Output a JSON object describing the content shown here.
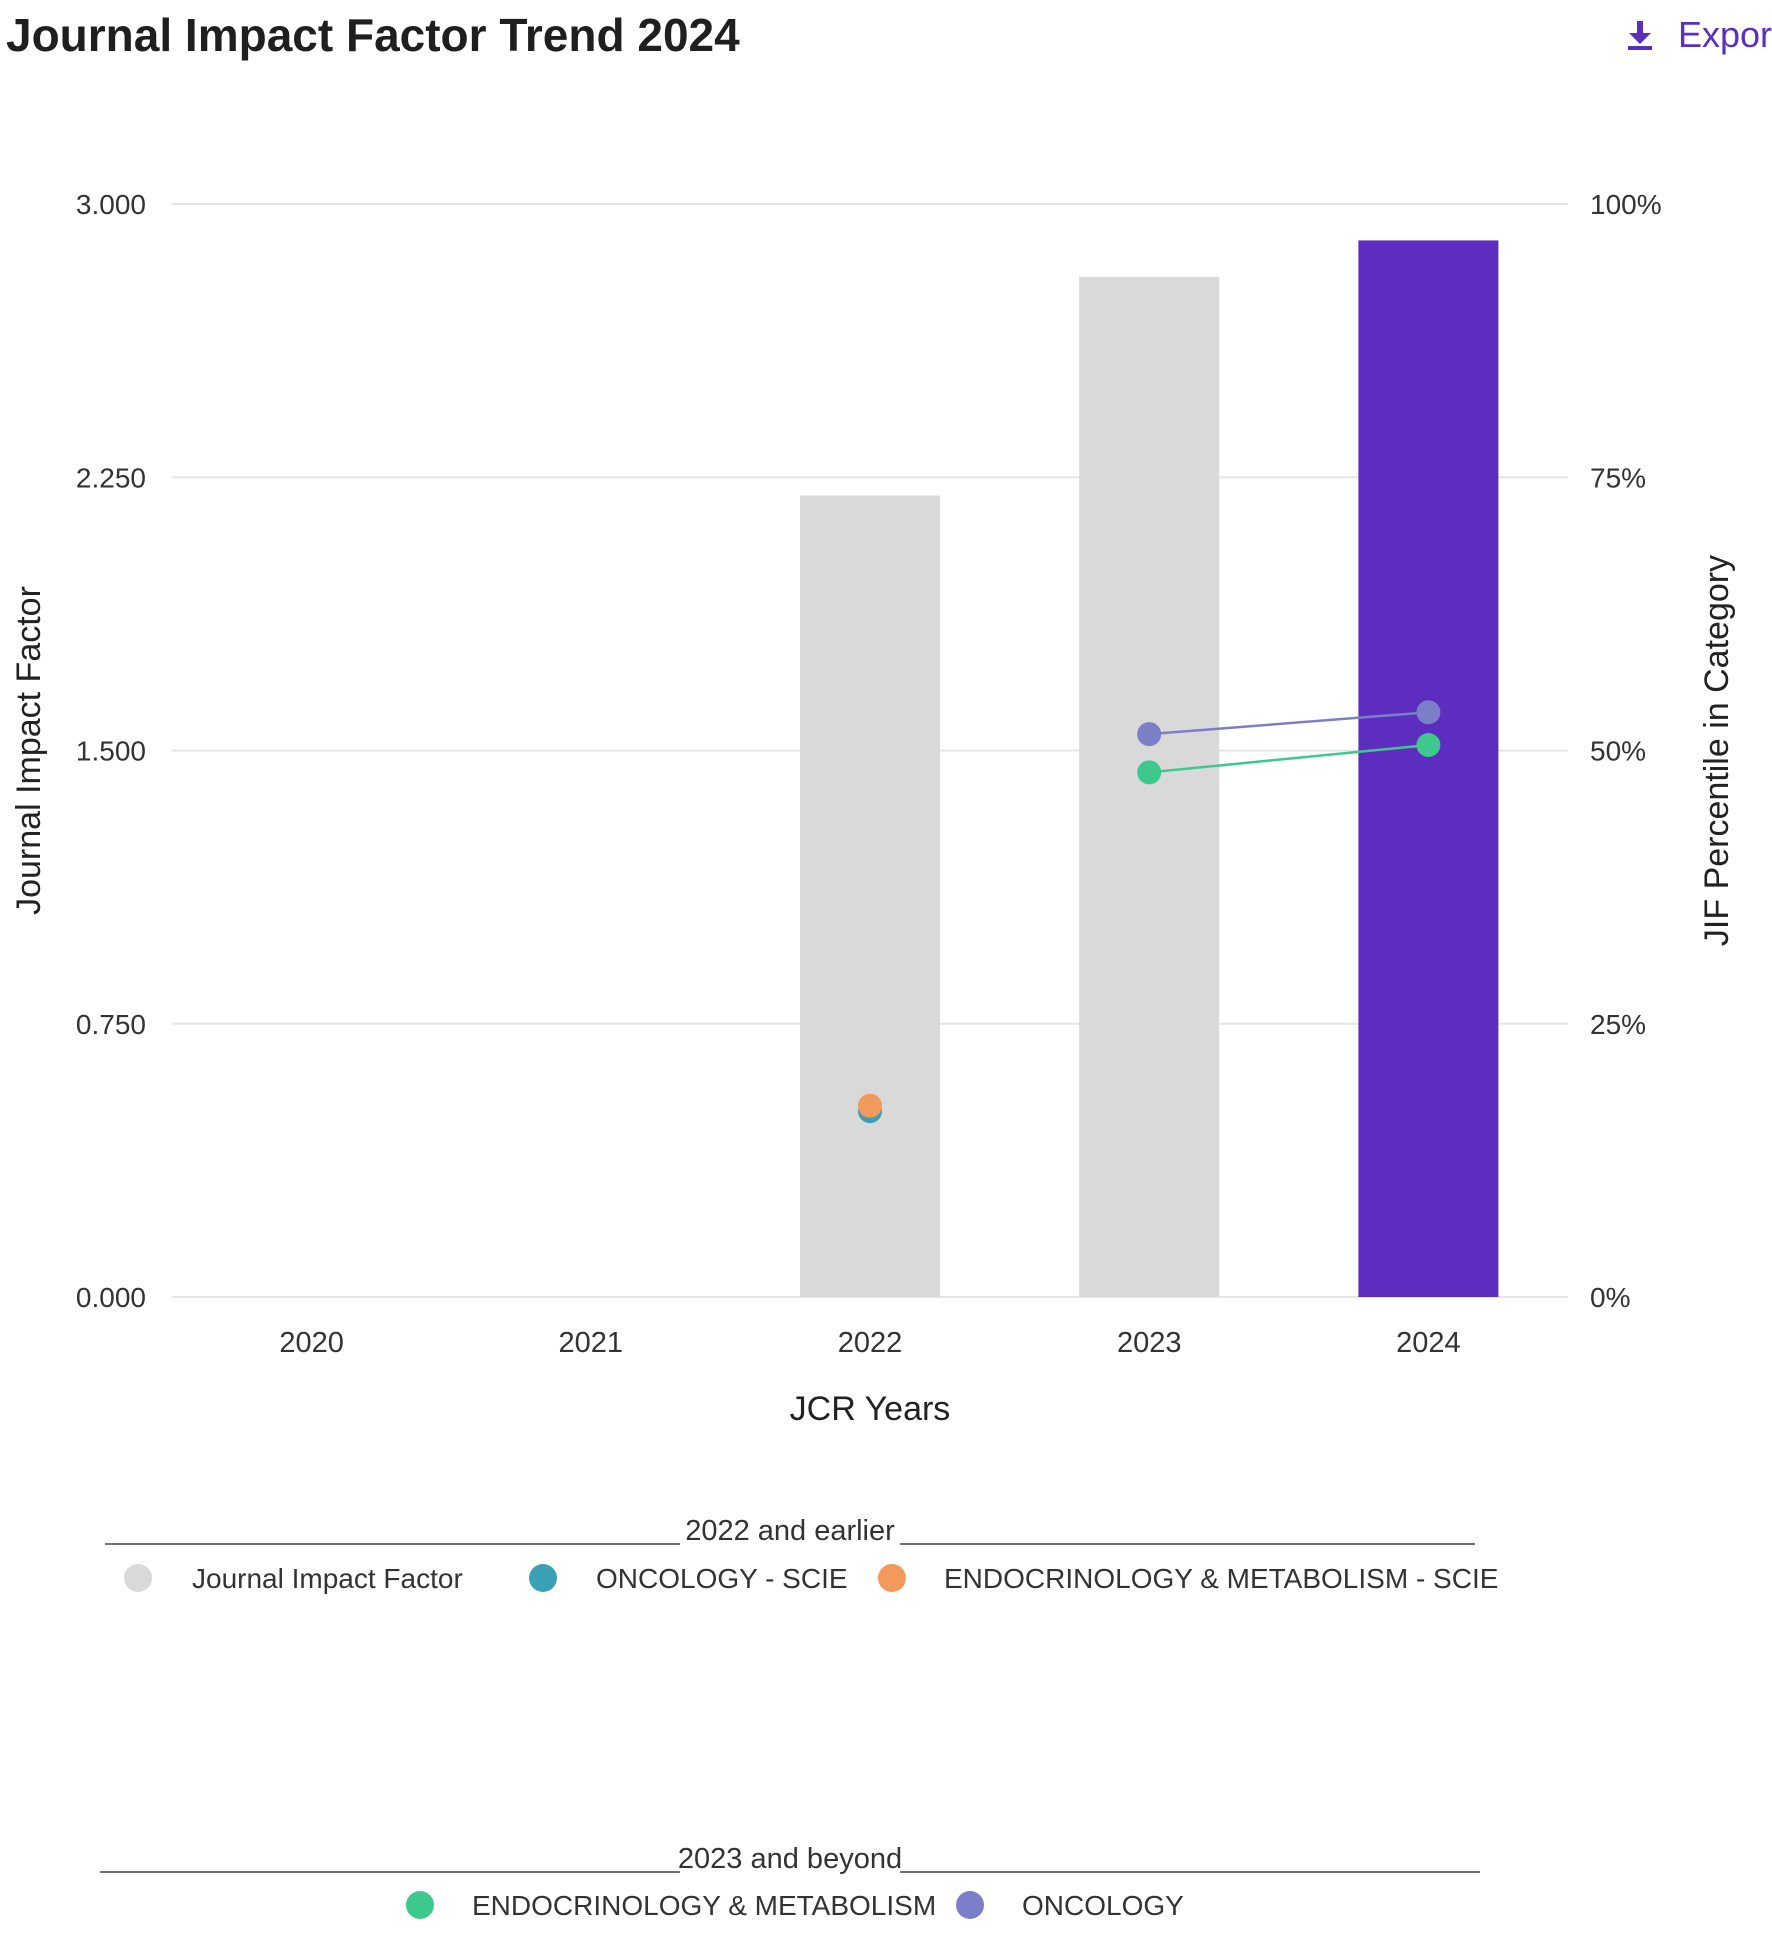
{
  "header": {
    "title": "Journal Impact Factor Trend 2024",
    "export_label": "Expor",
    "export_icon": "download-icon"
  },
  "colors": {
    "jif_bar": "#d9d9d9",
    "jif_bar_current": "#5c2dbf",
    "oncology_scie": "#3aa1b5",
    "endocrinology_metabolism_scie": "#f29a5c",
    "endocrinology_metabolism": "#3ec98c",
    "oncology": "#7a7fc8",
    "export_accent": "#5b2fc0",
    "gridline": "#e6e6e6"
  },
  "chart_data": {
    "type": "bar",
    "title": "Journal Impact Factor Trend 2024",
    "xlabel": "JCR Years",
    "ylabel": "Journal Impact Factor",
    "y2label": "JIF Percentile in Category",
    "categories": [
      "2020",
      "2021",
      "2022",
      "2023",
      "2024"
    ],
    "ylim": [
      0,
      3
    ],
    "y_ticks": [
      "0.000",
      "0.750",
      "1.500",
      "2.250",
      "3.000"
    ],
    "y2lim": [
      0,
      100
    ],
    "y2_ticks": [
      "0%",
      "25%",
      "50%",
      "75%",
      "100%"
    ],
    "grid": true,
    "series": [
      {
        "name": "Journal Impact Factor",
        "type": "bar",
        "axis": "left",
        "values": [
          null,
          null,
          2.2,
          2.8,
          2.9
        ]
      },
      {
        "name": "ONCOLOGY - SCIE",
        "type": "scatter",
        "axis": "right",
        "values": [
          null,
          null,
          17,
          null,
          null
        ]
      },
      {
        "name": "ENDOCRINOLOGY & METABOLISM - SCIE",
        "type": "scatter",
        "axis": "right",
        "values": [
          null,
          null,
          17.5,
          null,
          null
        ]
      },
      {
        "name": "ENDOCRINOLOGY & METABOLISM",
        "type": "line",
        "axis": "right",
        "values": [
          null,
          null,
          null,
          48,
          50.5
        ]
      },
      {
        "name": "ONCOLOGY",
        "type": "line",
        "axis": "right",
        "values": [
          null,
          null,
          null,
          51.5,
          53.5
        ]
      }
    ],
    "legend": {
      "groups": [
        {
          "title": "2022 and earlier",
          "items": [
            "Journal Impact Factor",
            "ONCOLOGY - SCIE",
            "ENDOCRINOLOGY & METABOLISM - SCIE"
          ]
        },
        {
          "title": "2023 and beyond",
          "items": [
            "ENDOCRINOLOGY & METABOLISM",
            "ONCOLOGY"
          ]
        }
      ]
    }
  }
}
